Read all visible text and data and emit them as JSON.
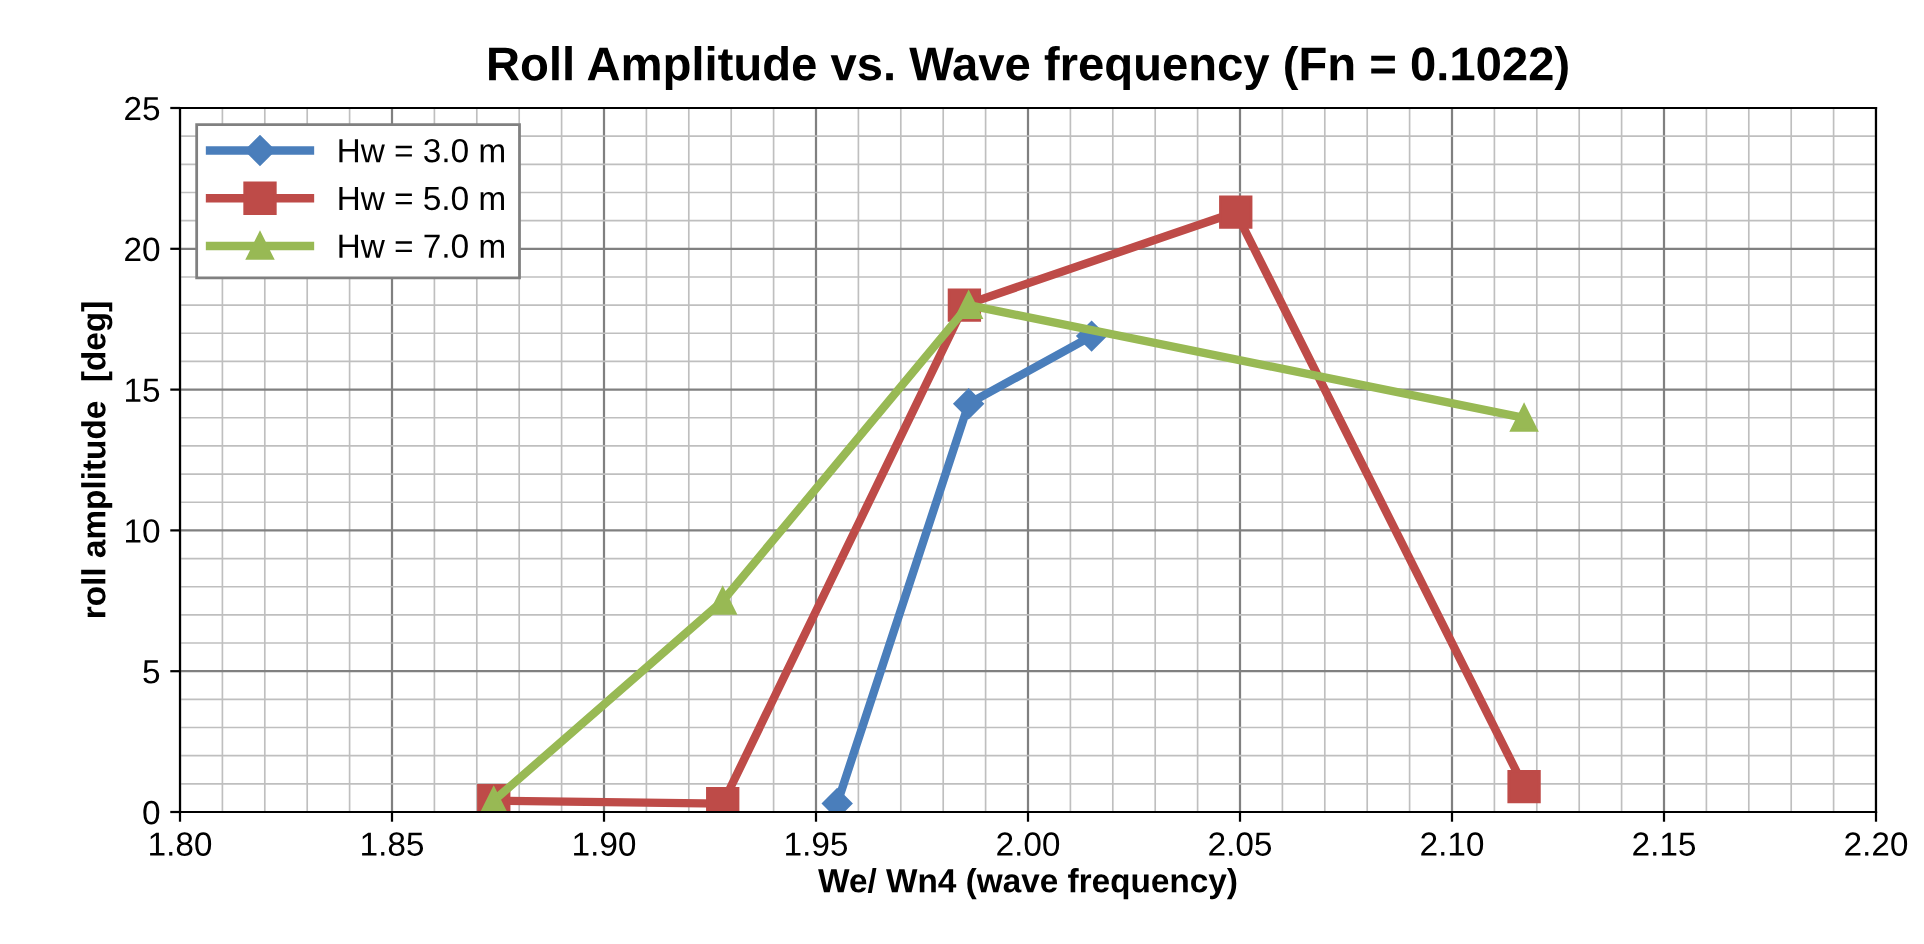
{
  "chart_data": {
    "type": "line",
    "title": "Roll Amplitude vs. Wave frequency (Fn = 0.1022)",
    "xlabel": "We/ Wn4 (wave frequency)",
    "ylabel": "roll amplitude  [deg]",
    "xlim": [
      1.8,
      2.2
    ],
    "xticks": [
      {
        "value": 1.8,
        "label": "1.80"
      },
      {
        "value": 1.85,
        "label": "1.85"
      },
      {
        "value": 1.9,
        "label": "1.90"
      },
      {
        "value": 1.95,
        "label": "1.95"
      },
      {
        "value": 2.0,
        "label": "2.00"
      },
      {
        "value": 2.05,
        "label": "2.05"
      },
      {
        "value": 2.1,
        "label": "2.10"
      },
      {
        "value": 2.15,
        "label": "2.15"
      },
      {
        "value": 2.2,
        "label": "2.20"
      }
    ],
    "ylim": [
      0,
      25
    ],
    "yticks": [
      0,
      5,
      10,
      15,
      20,
      25
    ],
    "grid": true,
    "legend": "top left",
    "series": [
      {
        "name": "Hw = 3.0 m",
        "color": "#4a7ebb",
        "marker": "diamond",
        "x": [
          1.955,
          1.986,
          2.015
        ],
        "values": [
          0.3,
          14.5,
          16.9
        ]
      },
      {
        "name": "Hw = 5.0 m",
        "color": "#be4b48",
        "marker": "square",
        "x": [
          1.874,
          1.928,
          1.985,
          2.049,
          2.117
        ],
        "values": [
          0.4,
          0.3,
          18.0,
          21.3,
          0.9
        ]
      },
      {
        "name": "Hw = 7.0 m",
        "color": "#98b954",
        "marker": "triangle",
        "x": [
          1.874,
          1.928,
          1.986,
          2.117
        ],
        "values": [
          0.4,
          7.5,
          18.0,
          14.0
        ]
      }
    ]
  }
}
